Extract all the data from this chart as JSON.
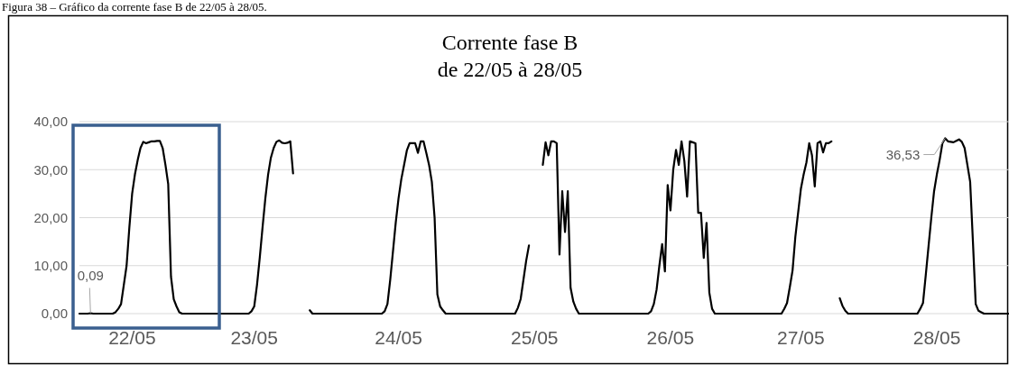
{
  "chart_data": {
    "type": "line",
    "title": "Corrente fase B",
    "subtitle": "de 22/05 à 28/05",
    "annotations": [
      "Figura 38 – Gráfico da corrente fase B de 22/05 à 28/05."
    ],
    "categories": [
      null,
      null,
      null,
      null,
      null,
      null,
      null,
      null,
      null,
      null,
      null,
      null,
      null,
      null,
      null,
      null,
      null,
      null,
      null,
      "22/05",
      null,
      null,
      null,
      null,
      null,
      null,
      null,
      null,
      null,
      null,
      null,
      null,
      null,
      null,
      null,
      null,
      null,
      null,
      null,
      null,
      null,
      null,
      null,
      null,
      null,
      null,
      null,
      null,
      null,
      null,
      null,
      null,
      null,
      null,
      null,
      null,
      null,
      null,
      null,
      null,
      null,
      null,
      null,
      "23/05",
      null,
      null,
      null,
      null,
      null,
      null,
      null,
      null,
      null,
      null,
      null,
      null,
      null,
      null,
      null,
      null,
      null,
      null,
      null,
      null,
      null,
      null,
      null,
      null,
      null,
      null,
      null,
      null,
      null,
      null,
      null,
      null,
      null,
      null,
      null,
      null,
      null,
      null,
      null,
      null,
      null,
      null,
      null,
      null,
      null,
      null,
      null,
      null,
      null,
      null,
      null,
      "24/05",
      null,
      null,
      null,
      null,
      null,
      null,
      null,
      null,
      null,
      null,
      null,
      null,
      null,
      null,
      null,
      null,
      null,
      null,
      null,
      null,
      null,
      null,
      null,
      null,
      null,
      null,
      null,
      null,
      null,
      null,
      null,
      null,
      null,
      null,
      null,
      null,
      null,
      null,
      null,
      null,
      null,
      null,
      null,
      null,
      null,
      null,
      null,
      null,
      "25/05",
      null,
      null,
      null,
      null,
      null,
      null,
      null,
      null,
      null,
      null,
      null,
      null,
      null,
      null,
      null,
      null,
      null,
      null,
      null,
      null,
      null,
      null,
      null,
      null,
      null,
      null,
      null,
      null,
      null,
      null,
      null,
      null,
      null,
      null,
      null,
      null,
      null,
      null,
      null,
      null,
      null,
      null,
      null,
      null,
      null,
      null,
      null,
      null,
      "26/05",
      null,
      null,
      null,
      null,
      null,
      null,
      null,
      null,
      null,
      null,
      null,
      null,
      null,
      null,
      null,
      null,
      null,
      null,
      null,
      null,
      null,
      null,
      null,
      null,
      null,
      null,
      null,
      null,
      null,
      null,
      null,
      null,
      null,
      null,
      null,
      null,
      null,
      null,
      null,
      null,
      null,
      null,
      null,
      null,
      null,
      null,
      "27/05",
      null,
      null,
      null,
      null,
      null,
      null,
      null,
      null,
      null,
      null,
      null,
      null,
      null,
      null,
      null,
      null,
      null,
      null,
      null,
      null,
      null,
      null,
      null,
      null,
      null,
      null,
      null,
      null,
      null,
      null,
      null,
      null,
      null,
      null,
      null,
      null,
      null,
      null,
      null,
      null,
      null,
      null,
      null,
      null,
      null,
      null,
      null,
      null,
      "28/05",
      null,
      null,
      null,
      null,
      null,
      null,
      null,
      null,
      null,
      null,
      null,
      null,
      null,
      null,
      null,
      null,
      null,
      null,
      null,
      null,
      null,
      null,
      null,
      null,
      null,
      null
    ],
    "series": [
      {
        "color": "#000000",
        "values": [
          0,
          0,
          0,
          0,
          0.09,
          0,
          0,
          0,
          0,
          0,
          0,
          0,
          0,
          0.3,
          1,
          2,
          6,
          10,
          18,
          25,
          29,
          32,
          34.5,
          35.8,
          35.5,
          35.7,
          35.9,
          35.9,
          36,
          36,
          34.5,
          31,
          27,
          7.7,
          3,
          1.5,
          0.3,
          0,
          0,
          0,
          0,
          0,
          0,
          0,
          0,
          0,
          0,
          0,
          0,
          0,
          0,
          0,
          0,
          0,
          0,
          0,
          0,
          0,
          0,
          0,
          0,
          0,
          0.5,
          1.5,
          6,
          11.7,
          18,
          24,
          29,
          32.5,
          34.5,
          35.8,
          36.1,
          35.6,
          35.5,
          35.6,
          35.9,
          29.2,
          null,
          null,
          null,
          null,
          null,
          0.7,
          0,
          0,
          0,
          0,
          0,
          0,
          0,
          0,
          0,
          0,
          0,
          0,
          0,
          0,
          0,
          0,
          0,
          0,
          0,
          0,
          0,
          0,
          0,
          0,
          0,
          0,
          0.5,
          2,
          7,
          13,
          19,
          24,
          28,
          31,
          34,
          35.5,
          35.5,
          35.5,
          33.5,
          35.9,
          35.9,
          33.5,
          31,
          27.5,
          20,
          4,
          1.5,
          0.7,
          0,
          0,
          0,
          0,
          0,
          0,
          0,
          0,
          0,
          0,
          0,
          0,
          0,
          0,
          0,
          0,
          0,
          0,
          0,
          0,
          0,
          0,
          0,
          0,
          0,
          0,
          1.2,
          3,
          7,
          11,
          14.2,
          null,
          null,
          null,
          null,
          31,
          35.7,
          33,
          35.9,
          35.9,
          35.5,
          12.3,
          25.5,
          17,
          25.5,
          5.4,
          2.5,
          1,
          0,
          0,
          0,
          0,
          0,
          0,
          0,
          0,
          0,
          0,
          0,
          0,
          0,
          0,
          0,
          0,
          0,
          0,
          0,
          0,
          0,
          0,
          0,
          0,
          0,
          0,
          0.5,
          2,
          5,
          10,
          14.5,
          8.8,
          26.8,
          21.5,
          30,
          34.1,
          31,
          35.9,
          31.8,
          24.4,
          35.9,
          35.7,
          35.5,
          21,
          21,
          11.6,
          18.9,
          4.4,
          1,
          0,
          0,
          0,
          0,
          0,
          0,
          0,
          0,
          0,
          0,
          0,
          0,
          0,
          0,
          0,
          0,
          0,
          0,
          0,
          0,
          0,
          0,
          0,
          0,
          0,
          1,
          2.2,
          5.5,
          9,
          16,
          21,
          26,
          29,
          31.5,
          35.5,
          33,
          26.5,
          35.5,
          35.9,
          33.6,
          35.5,
          35.5,
          35.9,
          null,
          null,
          3.2,
          1.6,
          0.6,
          0,
          0,
          0,
          0,
          0,
          0,
          0,
          0,
          0,
          0,
          0,
          0,
          0,
          0,
          0,
          0,
          0,
          0,
          0,
          0,
          0,
          0,
          0,
          0,
          0,
          0,
          1,
          2.2,
          8,
          14,
          20,
          25.5,
          29,
          32,
          35.5,
          36.53,
          35.9,
          35.8,
          35.7,
          36,
          36.3,
          35.8,
          34.5,
          31,
          27.5,
          15,
          2,
          0.6,
          0.3,
          0,
          0,
          0,
          0,
          0,
          0,
          0,
          0,
          0,
          0
        ],
        "value_labels": [
          null,
          null,
          null,
          null,
          "0,09",
          null,
          null,
          null,
          null,
          null,
          null,
          null,
          null,
          null,
          null,
          null,
          null,
          null,
          null,
          null,
          null,
          null,
          null,
          null,
          null,
          null,
          null,
          null,
          null,
          null,
          null,
          null,
          null,
          null,
          null,
          null,
          null,
          null,
          null,
          null,
          null,
          null,
          null,
          null,
          null,
          null,
          null,
          null,
          null,
          null,
          null,
          null,
          null,
          null,
          null,
          null,
          null,
          null,
          null,
          null,
          null,
          null,
          null,
          null,
          null,
          null,
          null,
          null,
          null,
          null,
          null,
          null,
          null,
          null,
          null,
          null,
          null,
          null,
          null,
          null,
          null,
          null,
          null,
          null,
          null,
          null,
          null,
          null,
          null,
          null,
          null,
          null,
          null,
          null,
          null,
          null,
          null,
          null,
          null,
          null,
          null,
          null,
          null,
          null,
          null,
          null,
          null,
          null,
          null,
          null,
          null,
          null,
          null,
          null,
          null,
          null,
          null,
          null,
          null,
          null,
          null,
          null,
          null,
          null,
          null,
          null,
          null,
          null,
          null,
          null,
          null,
          null,
          null,
          null,
          null,
          null,
          null,
          null,
          null,
          null,
          null,
          null,
          null,
          null,
          null,
          null,
          null,
          null,
          null,
          null,
          null,
          null,
          null,
          null,
          null,
          null,
          null,
          null,
          null,
          null,
          null,
          null,
          null,
          null,
          null,
          null,
          null,
          null,
          null,
          null,
          null,
          null,
          null,
          null,
          null,
          null,
          null,
          null,
          null,
          null,
          null,
          null,
          null,
          null,
          null,
          null,
          null,
          null,
          null,
          null,
          null,
          null,
          null,
          null,
          null,
          null,
          null,
          null,
          null,
          null,
          null,
          null,
          null,
          null,
          null,
          null,
          null,
          null,
          null,
          null,
          null,
          null,
          null,
          null,
          null,
          null,
          null,
          null,
          null,
          null,
          null,
          null,
          null,
          null,
          null,
          null,
          null,
          null,
          null,
          null,
          null,
          null,
          null,
          null,
          null,
          null,
          null,
          null,
          null,
          null,
          null,
          null,
          null,
          null,
          null,
          null,
          null,
          null,
          null,
          null,
          null,
          null,
          null,
          null,
          null,
          null,
          null,
          null,
          null,
          null,
          null,
          null,
          null,
          null,
          null,
          null,
          null,
          null,
          null,
          null,
          null,
          null,
          null,
          null,
          null,
          null,
          null,
          null,
          null,
          null,
          null,
          null,
          null,
          null,
          null,
          null,
          null,
          null,
          null,
          null,
          null,
          null,
          null,
          null,
          null,
          null,
          null,
          null,
          null,
          null,
          null,
          null,
          null,
          null,
          null,
          null,
          null,
          null,
          null,
          null,
          null,
          null,
          "36,53",
          null,
          null,
          null,
          null,
          null,
          null,
          null,
          null,
          null,
          null,
          null,
          null,
          null,
          null,
          null,
          null,
          null,
          null,
          null,
          null,
          null,
          null,
          null
        ]
      }
    ],
    "ylim": [
      0,
      40
    ],
    "yticks": [
      {
        "value": 0,
        "label": "0,00"
      },
      {
        "value": 10,
        "label": "10,00"
      },
      {
        "value": 20,
        "label": "20,00"
      },
      {
        "value": 30,
        "label": "30,00"
      },
      {
        "value": 40,
        "label": "40,00"
      }
    ],
    "grid": "y",
    "marker": "none",
    "line_style": "solid"
  }
}
